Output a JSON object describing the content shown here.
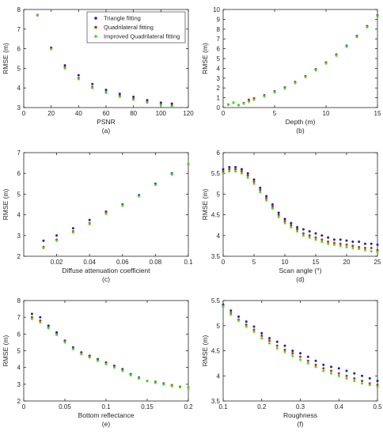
{
  "legend": [
    {
      "name": "Triangle fitting",
      "color": "#1f1fb4"
    },
    {
      "name": "Quadrilateral fitting",
      "color": "#d42a0c"
    },
    {
      "name": "Improved Quadrilateral fitting",
      "color": "#39e01a"
    }
  ],
  "chart_data": [
    {
      "type": "scatter",
      "caption": "(a)",
      "xlabel": "PSNR",
      "ylabel": "RMSE (m)",
      "xlim": [
        0,
        120
      ],
      "ylim": [
        3,
        8
      ],
      "xticks": [
        0,
        20,
        40,
        60,
        80,
        100,
        120
      ],
      "yticks": [
        3,
        4,
        5,
        6,
        7,
        8
      ],
      "legend_position": "top-right",
      "series": [
        {
          "name": "Triangle fitting",
          "x": [
            10,
            20,
            30,
            40,
            50,
            60,
            70,
            80,
            90,
            100,
            108
          ],
          "y": [
            7.72,
            6.05,
            5.15,
            4.65,
            4.2,
            3.9,
            3.7,
            3.55,
            3.38,
            3.25,
            3.2
          ]
        },
        {
          "name": "Quadrilateral fitting",
          "x": [
            10,
            20,
            30,
            40,
            50,
            60,
            70,
            80,
            90,
            100,
            108
          ],
          "y": [
            7.7,
            6.0,
            5.05,
            4.5,
            4.05,
            3.78,
            3.6,
            3.45,
            3.3,
            3.18,
            3.1
          ]
        },
        {
          "name": "Improved Quadrilateral fitting",
          "x": [
            10,
            20,
            30,
            40,
            50,
            60,
            70,
            80,
            90,
            100,
            108
          ],
          "y": [
            7.7,
            5.98,
            5.0,
            4.45,
            4.0,
            3.75,
            3.55,
            3.4,
            3.25,
            3.12,
            3.05
          ]
        }
      ]
    },
    {
      "type": "scatter",
      "caption": "(b)",
      "xlabel": "Depth (m)",
      "ylabel": "RMSE (m)",
      "xlim": [
        0,
        15
      ],
      "ylim": [
        0,
        10
      ],
      "xticks": [
        0,
        5,
        10,
        15
      ],
      "yticks": [
        0,
        1,
        2,
        3,
        4,
        5,
        6,
        7,
        8,
        9,
        10
      ],
      "series": [
        {
          "name": "Triangle fitting",
          "x": [
            0.5,
            1,
            1.5,
            2,
            2.5,
            3,
            4,
            5,
            6,
            7,
            8,
            9,
            10,
            11,
            12,
            13,
            14,
            15
          ],
          "y": [
            0.3,
            0.5,
            0.25,
            0.45,
            0.75,
            0.9,
            1.25,
            1.65,
            2.05,
            2.6,
            3.2,
            3.9,
            4.6,
            5.4,
            6.3,
            7.3,
            8.3,
            9.4
          ]
        },
        {
          "name": "Quadrilateral fitting",
          "x": [
            0.5,
            1,
            1.5,
            2,
            2.5,
            3,
            4,
            5,
            6,
            7,
            8,
            9,
            10,
            11,
            12,
            13,
            14,
            15
          ],
          "y": [
            0.3,
            0.5,
            0.25,
            0.45,
            0.8,
            0.95,
            1.2,
            1.6,
            2.0,
            2.55,
            3.15,
            3.85,
            4.55,
            5.35,
            6.25,
            7.25,
            8.25,
            9.35
          ]
        },
        {
          "name": "Improved Quadrilateral fitting",
          "x": [
            0.5,
            1,
            1.5,
            2,
            2.5,
            3,
            4,
            5,
            6,
            7,
            8,
            9,
            10,
            11,
            12,
            13,
            14,
            15
          ],
          "y": [
            0.3,
            0.5,
            0.25,
            0.4,
            0.6,
            0.8,
            1.15,
            1.55,
            1.95,
            2.5,
            3.1,
            3.8,
            4.5,
            5.3,
            6.2,
            7.2,
            8.2,
            9.3
          ]
        }
      ]
    },
    {
      "type": "scatter",
      "caption": "(c)",
      "xlabel": "Diffuse attenuation coefficient",
      "ylabel": "RMSE (m)",
      "xlim": [
        0,
        0.1
      ],
      "ylim": [
        2,
        7
      ],
      "xticks": [
        0.02,
        0.04,
        0.06,
        0.08,
        0.1
      ],
      "yticks": [
        2,
        3,
        4,
        5,
        6,
        7
      ],
      "series": [
        {
          "name": "Triangle fitting",
          "x": [
            0.012,
            0.02,
            0.03,
            0.04,
            0.05,
            0.06,
            0.07,
            0.08,
            0.09,
            0.1
          ],
          "y": [
            2.75,
            3.0,
            3.35,
            3.75,
            4.15,
            4.5,
            4.95,
            5.5,
            6.0,
            6.45
          ]
        },
        {
          "name": "Quadrilateral fitting",
          "x": [
            0.012,
            0.02,
            0.03,
            0.04,
            0.05,
            0.06,
            0.07,
            0.08,
            0.09,
            0.1
          ],
          "y": [
            2.45,
            2.8,
            3.2,
            3.6,
            4.1,
            4.45,
            4.9,
            5.45,
            5.95,
            6.45
          ]
        },
        {
          "name": "Improved Quadrilateral fitting",
          "x": [
            0.012,
            0.02,
            0.03,
            0.04,
            0.05,
            0.06,
            0.07,
            0.08,
            0.09,
            0.1
          ],
          "y": [
            2.4,
            2.75,
            3.15,
            3.55,
            4.05,
            4.45,
            4.9,
            5.45,
            5.95,
            6.45
          ]
        }
      ]
    },
    {
      "type": "scatter",
      "caption": "(d)",
      "xlabel": "Scan angle (°)",
      "ylabel": "RMSE (m)",
      "xlim": [
        0,
        25
      ],
      "ylim": [
        3.5,
        6
      ],
      "xticks": [
        0,
        5,
        10,
        15,
        20,
        25
      ],
      "yticks": [
        3.5,
        4,
        4.5,
        5,
        5.5,
        6
      ],
      "series": [
        {
          "name": "Triangle fitting",
          "x": [
            0,
            1,
            2,
            3,
            4,
            5,
            6,
            7,
            8,
            9,
            10,
            11,
            12,
            13,
            14,
            15,
            16,
            17,
            18,
            19,
            20,
            21,
            22,
            23,
            24,
            25
          ],
          "y": [
            5.6,
            5.65,
            5.65,
            5.6,
            5.5,
            5.35,
            5.15,
            4.95,
            4.75,
            4.55,
            4.4,
            4.3,
            4.2,
            4.15,
            4.1,
            4.05,
            4.0,
            3.95,
            3.9,
            3.9,
            3.88,
            3.85,
            3.85,
            3.8,
            3.8,
            3.78
          ]
        },
        {
          "name": "Quadrilateral fitting",
          "x": [
            0,
            1,
            2,
            3,
            4,
            5,
            6,
            7,
            8,
            9,
            10,
            11,
            12,
            13,
            14,
            15,
            16,
            17,
            18,
            19,
            20,
            21,
            22,
            23,
            24,
            25
          ],
          "y": [
            5.55,
            5.6,
            5.6,
            5.55,
            5.45,
            5.3,
            5.1,
            4.9,
            4.7,
            4.5,
            4.35,
            4.25,
            4.15,
            4.05,
            4.0,
            3.95,
            3.9,
            3.85,
            3.82,
            3.8,
            3.78,
            3.75,
            3.72,
            3.7,
            3.7,
            3.65
          ]
        },
        {
          "name": "Improved Quadrilateral fitting",
          "x": [
            0,
            1,
            2,
            3,
            4,
            5,
            6,
            7,
            8,
            9,
            10,
            11,
            12,
            13,
            14,
            15,
            16,
            17,
            18,
            19,
            20,
            21,
            22,
            23,
            24,
            25
          ],
          "y": [
            5.5,
            5.55,
            5.55,
            5.5,
            5.4,
            5.25,
            5.05,
            4.85,
            4.65,
            4.45,
            4.3,
            4.2,
            4.1,
            4.0,
            3.95,
            3.9,
            3.85,
            3.8,
            3.78,
            3.75,
            3.72,
            3.7,
            3.68,
            3.65,
            3.62,
            3.6
          ]
        }
      ]
    },
    {
      "type": "scatter",
      "caption": "(e)",
      "xlabel": "Bottom reflectance",
      "ylabel": "RMSE (m)",
      "xlim": [
        0,
        0.2
      ],
      "ylim": [
        2,
        8
      ],
      "xticks": [
        0,
        0.05,
        0.1,
        0.15,
        0.2
      ],
      "yticks": [
        2,
        3,
        4,
        5,
        6,
        7,
        8
      ],
      "series": [
        {
          "name": "Triangle fitting",
          "x": [
            0.01,
            0.02,
            0.03,
            0.04,
            0.05,
            0.06,
            0.07,
            0.08,
            0.09,
            0.1,
            0.11,
            0.12,
            0.13,
            0.14,
            0.15,
            0.16,
            0.17,
            0.18,
            0.19,
            0.2
          ],
          "y": [
            7.2,
            7.0,
            6.5,
            6.1,
            5.6,
            5.2,
            4.9,
            4.7,
            4.5,
            4.3,
            4.1,
            3.9,
            3.6,
            3.4,
            3.2,
            3.1,
            3.0,
            2.9,
            2.85,
            2.8
          ]
        },
        {
          "name": "Quadrilateral fitting",
          "x": [
            0.01,
            0.02,
            0.03,
            0.04,
            0.05,
            0.06,
            0.07,
            0.08,
            0.09,
            0.1,
            0.11,
            0.12,
            0.13,
            0.14,
            0.15,
            0.16,
            0.17,
            0.18,
            0.19,
            0.2
          ],
          "y": [
            7.0,
            6.8,
            6.4,
            6.0,
            5.55,
            5.15,
            4.85,
            4.65,
            4.45,
            4.25,
            4.05,
            3.85,
            3.55,
            3.35,
            3.2,
            3.15,
            3.05,
            2.95,
            2.85,
            2.8
          ]
        },
        {
          "name": "Improved Quadrilateral fitting",
          "x": [
            0.01,
            0.02,
            0.03,
            0.04,
            0.05,
            0.06,
            0.07,
            0.08,
            0.09,
            0.1,
            0.11,
            0.12,
            0.13,
            0.14,
            0.15,
            0.16,
            0.17,
            0.18,
            0.19,
            0.2
          ],
          "y": [
            6.9,
            6.7,
            6.35,
            5.95,
            5.5,
            5.1,
            4.8,
            4.6,
            4.4,
            4.2,
            4.0,
            3.8,
            3.55,
            3.35,
            3.2,
            3.1,
            3.0,
            2.9,
            2.82,
            2.78
          ]
        }
      ]
    },
    {
      "type": "scatter",
      "caption": "(f)",
      "xlabel": "Roughness",
      "ylabel": "RMSE (m)",
      "xlim": [
        0.1,
        0.5
      ],
      "ylim": [
        3.5,
        5.5
      ],
      "xticks": [
        0.1,
        0.2,
        0.3,
        0.4,
        0.5
      ],
      "yticks": [
        3.5,
        4,
        4.5,
        5,
        5.5
      ],
      "series": [
        {
          "name": "Triangle fitting",
          "x": [
            0.1,
            0.12,
            0.14,
            0.16,
            0.18,
            0.2,
            0.22,
            0.24,
            0.26,
            0.28,
            0.3,
            0.32,
            0.34,
            0.36,
            0.38,
            0.4,
            0.42,
            0.44,
            0.46,
            0.48,
            0.5
          ],
          "y": [
            5.42,
            5.3,
            5.18,
            5.08,
            4.98,
            4.85,
            4.75,
            4.68,
            4.6,
            4.5,
            4.45,
            4.38,
            4.3,
            4.22,
            4.18,
            4.15,
            4.1,
            4.05,
            4.0,
            3.95,
            3.9
          ]
        },
        {
          "name": "Quadrilateral fitting",
          "x": [
            0.1,
            0.12,
            0.14,
            0.16,
            0.18,
            0.2,
            0.22,
            0.24,
            0.26,
            0.28,
            0.3,
            0.32,
            0.34,
            0.36,
            0.38,
            0.4,
            0.42,
            0.44,
            0.46,
            0.48,
            0.5
          ],
          "y": [
            5.4,
            5.25,
            5.12,
            5.02,
            4.92,
            4.8,
            4.7,
            4.6,
            4.52,
            4.45,
            4.38,
            4.3,
            4.22,
            4.15,
            4.1,
            4.05,
            4.0,
            3.95,
            3.9,
            3.85,
            3.82
          ]
        },
        {
          "name": "Improved Quadrilateral fitting",
          "x": [
            0.1,
            0.12,
            0.14,
            0.16,
            0.18,
            0.2,
            0.22,
            0.24,
            0.26,
            0.28,
            0.3,
            0.32,
            0.34,
            0.36,
            0.38,
            0.4,
            0.42,
            0.44,
            0.46,
            0.48,
            0.5
          ],
          "y": [
            5.38,
            5.22,
            5.1,
            4.98,
            4.88,
            4.75,
            4.65,
            4.55,
            4.48,
            4.4,
            4.32,
            4.25,
            4.18,
            4.1,
            4.05,
            4.0,
            3.95,
            3.9,
            3.85,
            3.82,
            3.78
          ]
        }
      ]
    }
  ]
}
